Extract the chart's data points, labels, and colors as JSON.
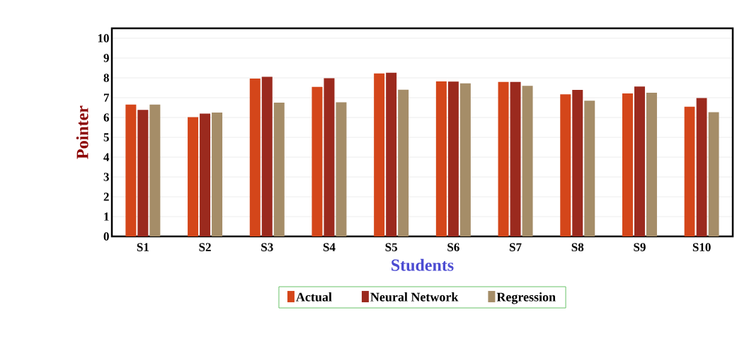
{
  "chart_data": {
    "type": "bar",
    "xlabel": "Students",
    "ylabel": "Pointer",
    "categories": [
      "S1",
      "S2",
      "S3",
      "S4",
      "S5",
      "S6",
      "S7",
      "S8",
      "S9",
      "S10"
    ],
    "series": [
      {
        "name": "Actual",
        "color": "#d4461a",
        "values": [
          6.65,
          6.02,
          7.96,
          7.54,
          8.23,
          7.82,
          7.79,
          7.17,
          7.21,
          6.54
        ]
      },
      {
        "name": "Neural Network",
        "color": "#9b2a1e",
        "values": [
          6.38,
          6.2,
          8.05,
          7.98,
          8.27,
          7.81,
          7.79,
          7.39,
          7.56,
          6.98
        ]
      },
      {
        "name": "Regression",
        "color": "#a58d68",
        "values": [
          6.65,
          6.25,
          6.75,
          6.77,
          7.4,
          7.73,
          7.6,
          6.85,
          7.25,
          6.27
        ]
      }
    ],
    "ylim": [
      0,
      10.5
    ],
    "yticks": [
      0,
      1,
      2,
      3,
      4,
      5,
      6,
      7,
      8,
      9,
      10
    ],
    "grid": "y",
    "legend": "bottom"
  }
}
